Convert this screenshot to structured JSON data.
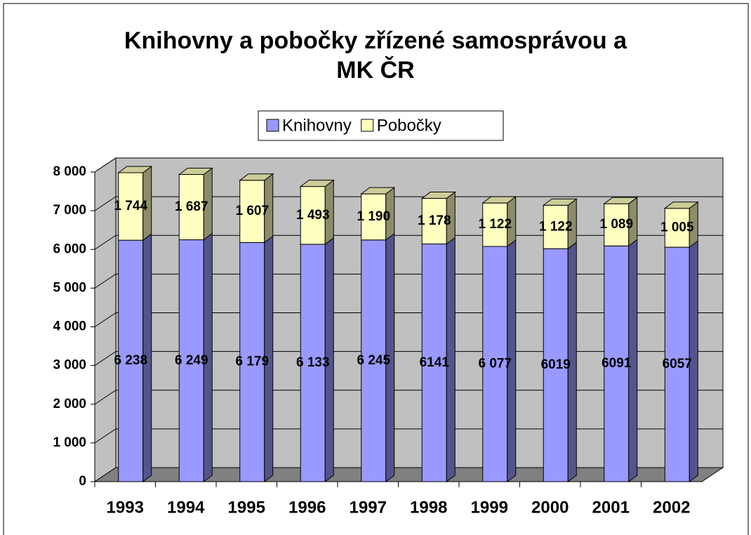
{
  "chart_data": {
    "type": "bar3d_stacked",
    "title": "Knihovny a pobočky zřízené samosprávou a MK ČR",
    "categories": [
      "1993",
      "1994",
      "1995",
      "1996",
      "1997",
      "1998",
      "1999",
      "2000",
      "2001",
      "2002"
    ],
    "series": [
      {
        "name": "Knihovny",
        "color": "#9999ff",
        "values": [
          6238,
          6249,
          6179,
          6133,
          6245,
          6141,
          6077,
          6019,
          6091,
          6057
        ],
        "value_labels": [
          "6 238",
          "6 249",
          "6 179",
          "6 133",
          "6 245",
          "6141",
          "6 077",
          "6019",
          "6091",
          "6057"
        ]
      },
      {
        "name": "Pobočky",
        "color": "#ffffc0",
        "values": [
          1744,
          1687,
          1607,
          1493,
          1190,
          1178,
          1122,
          1122,
          1089,
          1005
        ],
        "value_labels": [
          "1 744",
          "1 687",
          "1 607",
          "1 493",
          "1 190",
          "1 178",
          "1 122",
          "1 122",
          "1 089",
          "1 005"
        ]
      }
    ],
    "ylim": [
      0,
      8000
    ],
    "yticks": [
      0,
      {
        "value": 1000,
        "label": "1 000"
      },
      {
        "value": 2000,
        "label": "2 000"
      },
      {
        "value": 3000,
        "label": "3 000"
      },
      {
        "value": 4000,
        "label": "4 000"
      },
      {
        "value": 5000,
        "label": "5 000"
      },
      {
        "value": 6000,
        "label": "6 000"
      },
      {
        "value": 7000,
        "label": "7 000"
      },
      {
        "value": 8000,
        "label": "8 000"
      }
    ],
    "grid": true,
    "legend": "top"
  }
}
